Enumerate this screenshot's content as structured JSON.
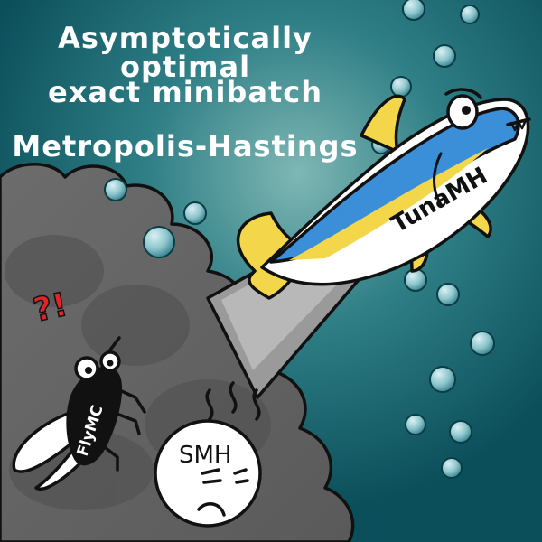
{
  "title": {
    "line1": "Asymptotically optimal",
    "line2": "exact minibatch",
    "line3": "Metropolis-Hastings"
  },
  "labels": {
    "tuna": "TunaMH",
    "fly": "FlyMC",
    "smh": "SMH",
    "surprise": "?!"
  },
  "colors": {
    "background": "#0d5a66",
    "background_glow": "#6aa8a6",
    "smoke": "#6b6b6b",
    "tuna_blue": "#3a8fd8",
    "tuna_yellow": "#f3d64a",
    "surprise_red": "#e0242a"
  }
}
